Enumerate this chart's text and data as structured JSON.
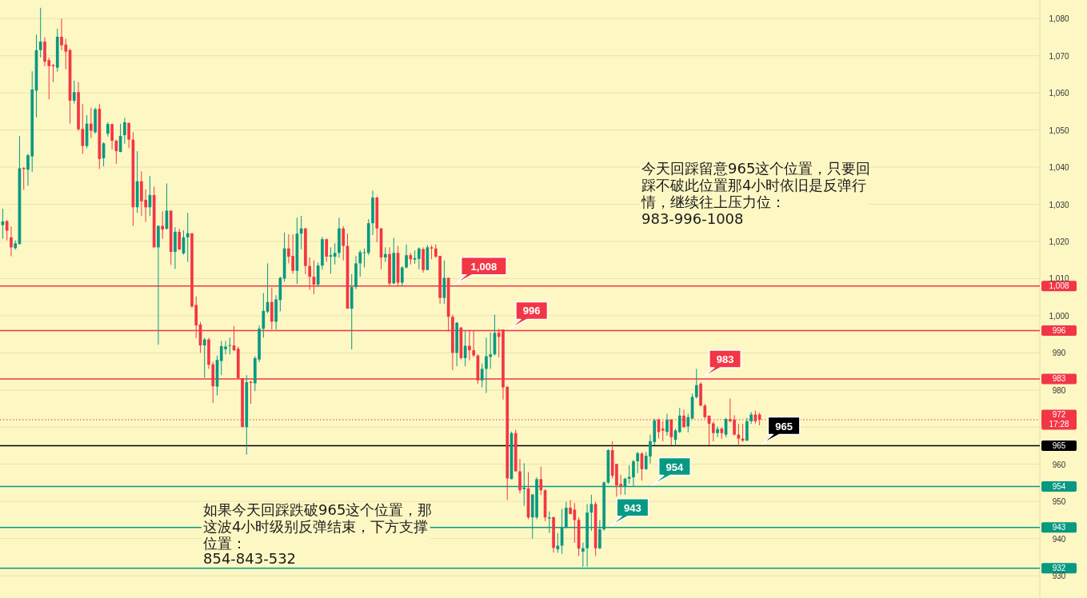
{
  "chart_data": {
    "type": "candlestick",
    "categories": [
      null,
      null,
      null,
      null,
      null,
      null,
      null,
      null,
      null,
      null,
      null,
      null,
      null,
      null,
      null,
      null,
      null,
      null,
      null,
      null,
      null,
      null,
      null,
      null,
      null,
      null,
      null,
      null,
      null,
      null,
      null,
      null,
      null,
      null,
      null,
      null,
      null,
      null,
      null,
      null,
      null,
      null,
      null,
      null,
      null,
      null,
      null,
      null,
      null,
      null,
      null,
      null,
      null,
      null,
      null,
      null,
      null,
      null,
      null,
      null,
      null,
      null,
      null,
      null,
      null,
      null,
      null,
      null,
      null,
      null,
      null,
      null,
      null,
      null,
      null,
      null,
      null,
      null,
      null,
      null,
      null,
      null,
      null,
      null,
      null,
      null,
      null,
      null,
      null,
      null,
      null,
      null,
      null,
      null,
      null,
      null,
      null,
      null,
      null,
      null,
      null,
      null,
      null,
      null,
      null,
      null,
      null,
      null,
      null,
      null,
      null,
      null,
      null,
      null,
      null,
      null,
      null,
      null,
      null,
      null,
      null,
      null,
      null,
      null,
      null,
      null,
      null,
      null,
      null,
      null,
      null,
      null,
      null,
      null,
      null,
      null,
      null,
      null,
      null,
      null,
      null,
      null,
      null,
      null,
      null,
      null,
      null,
      null,
      null,
      null,
      null,
      null,
      null,
      null,
      null,
      null,
      null,
      null,
      null,
      null,
      null,
      null,
      null,
      null,
      null,
      null,
      null,
      null,
      null,
      null,
      null,
      null,
      null,
      null,
      null,
      null,
      null,
      null,
      null,
      null,
      null,
      null,
      null,
      null,
      null,
      null,
      null,
      null,
      null,
      null,
      null,
      null,
      null,
      null,
      null,
      null,
      null,
      null,
      null,
      null,
      null,
      null,
      null,
      null,
      null,
      null,
      null,
      null,
      null,
      null,
      null,
      null,
      null,
      null,
      null,
      null,
      null,
      null,
      null,
      null,
      null,
      null,
      null,
      null,
      null,
      null,
      null,
      null,
      null,
      null,
      null,
      null,
      null,
      null,
      null,
      null,
      null,
      null,
      null,
      null,
      null,
      null,
      null,
      null,
      null,
      null,
      null
    ],
    "ohlc": [
      [
        1024.4,
        1028.8,
        1020.7,
        1025.4
      ],
      [
        1025.5,
        1025.7,
        1020.3,
        1022.9
      ],
      [
        1021.1,
        1024,
        1016,
        1018.4
      ],
      [
        1018.2,
        1020.3,
        1017.8,
        1019.5
      ],
      [
        1019.3,
        1048.4,
        1019.2,
        1039.7
      ],
      [
        1039.8,
        1040,
        1033.9,
        1039.5
      ],
      [
        1039.3,
        1043.6,
        1035,
        1043.2
      ],
      [
        1042.9,
        1065.8,
        1038.7,
        1060.9
      ],
      [
        1060.6,
        1075.7,
        1053.4,
        1071.5
      ],
      [
        1071.5,
        1082.9,
        1069.5,
        1073.8
      ],
      [
        1073.8,
        1075,
        1067.2,
        1068.4
      ],
      [
        1068.8,
        1069.5,
        1058.3,
        1067.2
      ],
      [
        1067.5,
        1067.8,
        1062.9,
        1067.2
      ],
      [
        1066.8,
        1077.3,
        1065.7,
        1075.1
      ],
      [
        1075.1,
        1080,
        1071.5,
        1072.8
      ],
      [
        1073,
        1074.6,
        1066.4,
        1071.1
      ],
      [
        1071.5,
        1071.9,
        1051.7,
        1057.9
      ],
      [
        1057.9,
        1063.3,
        1057.1,
        1060.2
      ],
      [
        1060.2,
        1062.9,
        1049.8,
        1050.2
      ],
      [
        1050.3,
        1057,
        1043.6,
        1045.7
      ],
      [
        1045.7,
        1054,
        1045.1,
        1051.7
      ],
      [
        1051.7,
        1056,
        1047.8,
        1049.8
      ],
      [
        1049.4,
        1056,
        1049,
        1055.6
      ],
      [
        1055.7,
        1057,
        1039.5,
        1042.2
      ],
      [
        1042.4,
        1046.7,
        1040.2,
        1046.4
      ],
      [
        1049,
        1052.1,
        1048.2,
        1051.6
      ],
      [
        1051.6,
        1051.7,
        1044.7,
        1047.1
      ],
      [
        1047.1,
        1047.4,
        1040.9,
        1044.3
      ],
      [
        1044.1,
        1051.7,
        1044,
        1048.4
      ],
      [
        1048.6,
        1053.3,
        1046.3,
        1052.1
      ],
      [
        1051.9,
        1052,
        1045.1,
        1047.4
      ],
      [
        1047.4,
        1049.4,
        1024.2,
        1029.2
      ],
      [
        1029.2,
        1044.3,
        1027.7,
        1036.2
      ],
      [
        1036.2,
        1038.9,
        1026.9,
        1030.8
      ],
      [
        1031.2,
        1034,
        1025.3,
        1029.2
      ],
      [
        1029.2,
        1037.6,
        1026.9,
        1032.5
      ],
      [
        1032.5,
        1034.8,
        1018.4,
        1018.4
      ],
      [
        1018.4,
        1024.2,
        992.2,
        1024.2
      ],
      [
        1024.2,
        1028.1,
        1020.7,
        1023.2
      ],
      [
        1023.4,
        1035.6,
        1023.2,
        1028.3
      ],
      [
        1028.3,
        1028.3,
        1013.7,
        1017.2
      ],
      [
        1017.2,
        1023.8,
        1012.6,
        1022.6
      ],
      [
        1022.6,
        1023.4,
        1017.8,
        1017.8
      ],
      [
        1016.8,
        1023,
        1016.4,
        1021.1
      ],
      [
        1021.1,
        1027.7,
        1014.5,
        1022.2
      ],
      [
        1022.2,
        1022.2,
        1002.1,
        1002.5
      ],
      [
        1002.9,
        1005.2,
        994,
        997.4
      ],
      [
        997.6,
        998.3,
        990,
        992
      ],
      [
        992,
        994.1,
        983.3,
        993.6
      ],
      [
        993.6,
        994.1,
        985.7,
        986.8
      ],
      [
        986.9,
        987.6,
        976.5,
        981
      ],
      [
        980.9,
        989.3,
        978.5,
        988.1
      ],
      [
        987.8,
        993.2,
        984,
        991.8
      ],
      [
        991,
        993.2,
        989.6,
        991.7
      ],
      [
        991.9,
        994.1,
        989.6,
        992.1
      ],
      [
        992,
        997.2,
        990.5,
        990.7
      ],
      [
        991.1,
        991.7,
        983.1,
        983.2
      ],
      [
        983.2,
        983.2,
        970,
        970
      ],
      [
        970,
        984,
        962.6,
        982.1
      ],
      [
        982.2,
        982.5,
        976.3,
        981.9
      ],
      [
        981.8,
        989.1,
        979.7,
        988.6
      ],
      [
        988.2,
        997.4,
        987.5,
        996.5
      ],
      [
        996.5,
        1006.1,
        994.1,
        1001.3
      ],
      [
        1001.1,
        1014.1,
        1000.7,
        1003.7
      ],
      [
        1003.7,
        1007.6,
        996.3,
        998.4
      ],
      [
        998.4,
        1005.5,
        996.3,
        1004.4
      ],
      [
        1004.2,
        1010.5,
        1001.2,
        1010.2
      ],
      [
        1010,
        1022.4,
        1009.1,
        1018.1
      ],
      [
        1018.1,
        1021.9,
        1014.1,
        1015.9
      ],
      [
        1016.1,
        1021.9,
        1011.3,
        1012.1
      ],
      [
        1012.1,
        1026.4,
        1008.5,
        1022.1
      ],
      [
        1022.1,
        1026.9,
        1017.9,
        1023.5
      ],
      [
        1023.5,
        1023.6,
        1011.2,
        1013.4
      ],
      [
        1013.4,
        1015.7,
        1007,
        1010.5
      ],
      [
        1010.5,
        1014.9,
        1005.8,
        1008.4
      ],
      [
        1008.4,
        1014.3,
        1007.7,
        1013.5
      ],
      [
        1013.5,
        1021.2,
        1012.4,
        1020.6
      ],
      [
        1020.6,
        1020.8,
        1014.5,
        1015.9
      ],
      [
        1015.9,
        1018.4,
        1011.3,
        1016.3
      ],
      [
        1015.9,
        1019.5,
        1013.8,
        1016.9
      ],
      [
        1016.9,
        1026.4,
        1015.6,
        1023.5
      ],
      [
        1023.5,
        1024.1,
        1014.9,
        1018.8
      ],
      [
        1018.8,
        1022.1,
        1001.9,
        1001.9
      ],
      [
        1001.9,
        1011.2,
        990.9,
        1007.7
      ],
      [
        1007.7,
        1016.1,
        1007.1,
        1014.1
      ],
      [
        1014.1,
        1017.7,
        1010.5,
        1017.1
      ],
      [
        1016.9,
        1018.1,
        1013,
        1017.1
      ],
      [
        1016.9,
        1026,
        1016.3,
        1024.9
      ],
      [
        1024.9,
        1033.7,
        1021.7,
        1031.8
      ],
      [
        1031.8,
        1032.1,
        1019.8,
        1023.5
      ],
      [
        1023.5,
        1023.6,
        1012.5,
        1015.7
      ],
      [
        1015.7,
        1018.4,
        1014.5,
        1016.6
      ],
      [
        1016.6,
        1018.4,
        1008,
        1008.7
      ],
      [
        1008.7,
        1021,
        1008.5,
        1016.9
      ],
      [
        1016.9,
        1018.8,
        1008,
        1008.9
      ],
      [
        1008.9,
        1013.3,
        1008,
        1013
      ],
      [
        1013,
        1019.2,
        1012.7,
        1016.3
      ],
      [
        1016.3,
        1016.9,
        1013.8,
        1015.2
      ],
      [
        1015.1,
        1017.6,
        1014,
        1015.5
      ],
      [
        1015.3,
        1018.4,
        1012.5,
        1018.1
      ],
      [
        1017.9,
        1018.4,
        1011.6,
        1012.3
      ],
      [
        1012.3,
        1019,
        1012.3,
        1018.4
      ],
      [
        1018.4,
        1019,
        1015.2,
        1018.1
      ],
      [
        1018.1,
        1019.2,
        1015.6,
        1015.9
      ],
      [
        1016.1,
        1016.1,
        1003.2,
        1004.8
      ],
      [
        1004.8,
        1014.9,
        1003.2,
        1010.2
      ],
      [
        1010.2,
        1010.2,
        995.8,
        999.7
      ],
      [
        999.7,
        1000.3,
        985.3,
        990
      ],
      [
        990,
        998.3,
        986.4,
        998.1
      ],
      [
        996.8,
        997,
        988.2,
        988.6
      ],
      [
        988.6,
        996.1,
        986.4,
        991.9
      ],
      [
        991.9,
        996.2,
        988,
        990.7
      ],
      [
        990.7,
        996,
        988.9,
        989.3
      ],
      [
        989.3,
        989.6,
        981.6,
        982.6
      ],
      [
        982.6,
        987.1,
        980.7,
        985.7
      ],
      [
        985.7,
        994.1,
        979.2,
        989.1
      ],
      [
        988.9,
        995.5,
        985.7,
        989.6
      ],
      [
        989.6,
        1000.3,
        989.3,
        995.4
      ],
      [
        995.4,
        996.5,
        988.8,
        994.3
      ],
      [
        996.3,
        996.3,
        977.4,
        980.7
      ],
      [
        980.9,
        980.9,
        950.4,
        956.2
      ],
      [
        956,
        968.8,
        956,
        968.4
      ],
      [
        968.4,
        969.3,
        958.1,
        958.1
      ],
      [
        958.1,
        961.4,
        952.2,
        953
      ],
      [
        953.3,
        960.3,
        948.8,
        953.7
      ],
      [
        953.5,
        957.9,
        945.2,
        945.7
      ],
      [
        945.7,
        951.9,
        940,
        951.9
      ],
      [
        945.7,
        956.5,
        945.2,
        956
      ],
      [
        956,
        959.4,
        951.7,
        953
      ],
      [
        953,
        953.3,
        944.7,
        945.7
      ],
      [
        945.4,
        947.3,
        941.5,
        945.7
      ],
      [
        945.8,
        945.8,
        936.2,
        937.5
      ],
      [
        937.1,
        941.5,
        936.2,
        938.1
      ],
      [
        938.1,
        948,
        935.9,
        943.1
      ],
      [
        943,
        949.9,
        942.7,
        948.3
      ],
      [
        948.3,
        950.4,
        946.5,
        946.6
      ],
      [
        947.8,
        949.6,
        938.9,
        945
      ],
      [
        945,
        945.7,
        935.3,
        937.3
      ],
      [
        936.5,
        938.9,
        932.4,
        937.4
      ],
      [
        937.4,
        949.3,
        932.4,
        947
      ],
      [
        947,
        951.8,
        942.1,
        949.3
      ],
      [
        949.3,
        949.9,
        935.3,
        937.4
      ],
      [
        937.4,
        945,
        937.1,
        942.5
      ],
      [
        942.5,
        955.4,
        942.1,
        955.1
      ],
      [
        955.1,
        964.1,
        954.7,
        963.8
      ],
      [
        963.8,
        966.2,
        956.2,
        956.9
      ],
      [
        960.1,
        960.1,
        951.3,
        954.3
      ],
      [
        954.7,
        957.2,
        951.8,
        954
      ],
      [
        954,
        956.4,
        951.8,
        956.1
      ],
      [
        956.1,
        959.7,
        954.7,
        956.6
      ],
      [
        956.5,
        961.2,
        954,
        960.8
      ],
      [
        960.8,
        963.3,
        957.6,
        963
      ],
      [
        962.9,
        963.3,
        955.6,
        958.7
      ],
      [
        958.7,
        963.3,
        958.5,
        962.3
      ],
      [
        962.1,
        968,
        960.2,
        966.2
      ],
      [
        966,
        972.3,
        965.1,
        971.8
      ],
      [
        972,
        972.3,
        966.9,
        968.7
      ],
      [
        969.6,
        971.6,
        966.2,
        969.1
      ],
      [
        968.7,
        973.6,
        967.7,
        972
      ],
      [
        972,
        972.2,
        965.1,
        967.3
      ],
      [
        966.6,
        969.6,
        965,
        969.1
      ],
      [
        968.7,
        975.2,
        968.4,
        973.1
      ],
      [
        973.1,
        974.7,
        969.8,
        970
      ],
      [
        970.2,
        973.6,
        968.6,
        972.7
      ],
      [
        972.3,
        979,
        972.2,
        978.1
      ],
      [
        978.1,
        985.7,
        977.7,
        981.3
      ],
      [
        981.7,
        982.1,
        975.6,
        975.8
      ],
      [
        975.8,
        976.3,
        972.3,
        972.7
      ],
      [
        973.1,
        973.1,
        965.1,
        970.9
      ],
      [
        971,
        971.5,
        966.2,
        968.4
      ],
      [
        968.4,
        970.2,
        967.3,
        969.5
      ],
      [
        969.6,
        970,
        966.9,
        968.4
      ],
      [
        968,
        972.5,
        967.3,
        972.2
      ],
      [
        972.2,
        977.7,
        971.3,
        971.6
      ],
      [
        972,
        973.2,
        967.7,
        968
      ],
      [
        968,
        970.9,
        965,
        966.9
      ],
      [
        966.9,
        970.9,
        966,
        966.4
      ],
      [
        966.4,
        972.5,
        966.2,
        971.6
      ],
      [
        971.6,
        974.1,
        970.9,
        973.4
      ],
      [
        973.4,
        974.5,
        971,
        971.6
      ],
      [
        973.4,
        973.9,
        970.5,
        972
      ],
      null,
      null,
      null,
      null,
      null,
      null,
      null,
      null,
      null,
      null,
      null,
      null,
      null,
      null,
      null,
      null,
      null,
      null,
      null,
      null,
      null,
      null,
      null,
      null,
      null,
      null,
      null,
      null,
      null,
      null,
      null,
      null,
      null,
      null,
      null,
      null,
      null,
      null,
      null,
      null,
      null,
      null,
      null,
      null,
      null,
      null,
      null,
      null,
      null,
      null,
      null,
      null,
      null,
      null,
      null,
      null,
      null,
      null,
      null,
      null,
      null,
      null,
      null,
      null,
      null,
      null
    ],
    "ylim": [
      924,
      1085
    ],
    "yticks": [
      930,
      940,
      950,
      960,
      {
        "value": 970,
        "label": null
      },
      980,
      990,
      {
        "value": 1000,
        "label": "1,000"
      },
      {
        "value": 1010,
        "label": "1,010"
      },
      {
        "value": 1020,
        "label": "1,020"
      },
      {
        "value": 1030,
        "label": "1,030"
      },
      {
        "value": 1040,
        "label": "1,040"
      },
      {
        "value": 1050,
        "label": "1,050"
      },
      {
        "value": 1060,
        "label": "1,060"
      },
      {
        "value": 1070,
        "label": "1,070"
      },
      {
        "value": 1080,
        "label": "1,080"
      }
    ],
    "tick_labels": "y",
    "grid": "y",
    "ref_lines": [
      {
        "axis": "y",
        "value": 1008,
        "label": "1,008",
        "color": "#f23645",
        "line_style": "solid"
      },
      {
        "axis": "y",
        "value": 996,
        "label": "996",
        "color": "#f23645",
        "line_style": "solid"
      },
      {
        "axis": "y",
        "value": 983,
        "label": "983",
        "color": "#f23645",
        "line_style": "solid"
      },
      {
        "axis": "y",
        "value": 972,
        "label": "972\n17:28",
        "color": "#f23645",
        "line_style": "dotted"
      },
      {
        "axis": "y",
        "value": 965,
        "label": "965",
        "color": "#000000",
        "line_style": "solid"
      },
      {
        "axis": "y",
        "value": 954,
        "label": "954",
        "color": "#089981",
        "line_style": "solid"
      },
      {
        "axis": "y",
        "value": 943,
        "label": "943",
        "color": "#089981",
        "line_style": "solid"
      },
      {
        "axis": "y",
        "value": 932,
        "label": "932",
        "color": "#089981",
        "line_style": "solid"
      }
    ],
    "annotations": [
      "今天回踩留意965这个位置，只要回踩不破此位置那4小时依旧是反弹行情，继续往上压力位：",
      "983-996-1008",
      "如果今天回踩跌破965这个位置，那这波4小时级别反弹结束，下方支撑位置：",
      "854-843-532"
    ]
  }
}
